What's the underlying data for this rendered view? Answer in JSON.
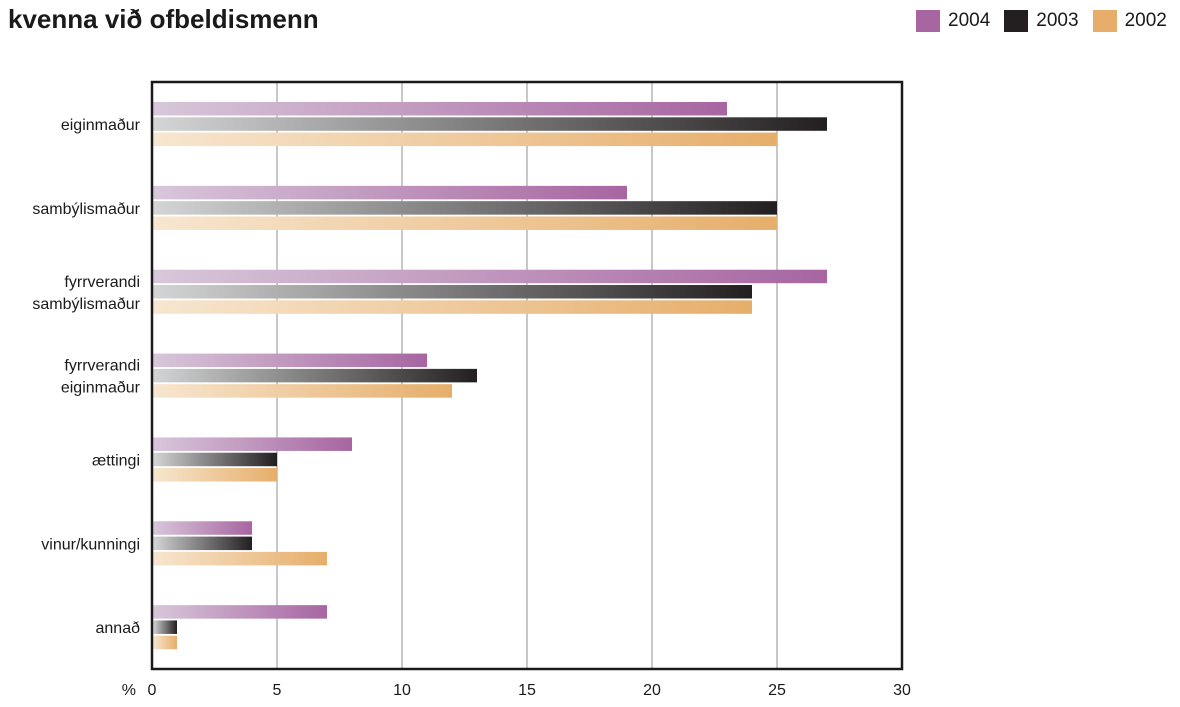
{
  "title": "kvenna við ofbeldismenn",
  "colors": {
    "2004": "#a765a1",
    "2003": "#231f20",
    "2002": "#e6ae6a",
    "grid": "#c8c8c8",
    "frame": "#1a1a1a"
  },
  "legend": [
    {
      "label": "2004",
      "color": "#a765a1"
    },
    {
      "label": "2003",
      "color": "#231f20"
    },
    {
      "label": "2002",
      "color": "#e6ae6a"
    }
  ],
  "chart_data": {
    "type": "bar",
    "orientation": "horizontal",
    "title": "kvenna við ofbeldismenn",
    "categories": [
      [
        "eiginmaður"
      ],
      [
        "sambýlismaður"
      ],
      [
        "fyrrverandi",
        "sambýlismaður"
      ],
      [
        "fyrrverandi",
        "eiginmaður"
      ],
      [
        "ættingi"
      ],
      [
        "vinur/kunningi"
      ],
      [
        "annað"
      ]
    ],
    "series": [
      {
        "name": "2004",
        "color": "#a765a1",
        "values": [
          23,
          19,
          27,
          11,
          8,
          4,
          7
        ]
      },
      {
        "name": "2003",
        "color": "#231f20",
        "values": [
          27,
          25,
          24,
          13,
          5,
          4,
          1
        ]
      },
      {
        "name": "2002",
        "color": "#e6ae6a",
        "values": [
          25,
          25,
          24,
          12,
          5,
          7,
          1
        ]
      }
    ],
    "x_unit": "%",
    "xlim": [
      0,
      30
    ],
    "x_ticks": [
      0,
      5,
      10,
      15,
      20,
      25,
      30
    ],
    "grid": true,
    "legend_position": "top-right"
  }
}
